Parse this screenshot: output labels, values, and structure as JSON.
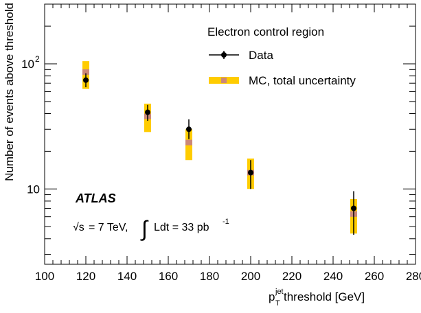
{
  "chart_data": {
    "type": "scatter",
    "ylabel": "Number of events above threshold",
    "xlabel_parts": {
      "p": "p",
      "sup": "jet",
      "sub": "T",
      "rest": " threshold [GeV]"
    },
    "xlim": [
      100,
      280
    ],
    "ylim": [
      2.5,
      300
    ],
    "yscale": "log",
    "xticks": [
      100,
      120,
      140,
      160,
      180,
      200,
      220,
      240,
      260,
      280
    ],
    "yticks": [
      {
        "value": 10,
        "label": "10"
      },
      {
        "value": 100,
        "label": "10",
        "sup": "2"
      }
    ],
    "legend": {
      "title": "Electron control region",
      "entries": [
        {
          "label": "Data",
          "style": "data"
        },
        {
          "label": "MC, total uncertainty",
          "style": "mc"
        }
      ],
      "placement": "top-right"
    },
    "annotations": {
      "atlas": "ATLAS",
      "sqrt": "√s",
      "energy": " = 7 TeV,",
      "integral": "∫",
      "lumi": "Ldt = 33 pb",
      "lumi_sup": "-1"
    },
    "series": [
      {
        "name": "Data",
        "x": [
          120,
          150,
          170,
          200,
          250
        ],
        "y": [
          74,
          41,
          30,
          13.5,
          7
        ],
        "yerr_low": [
          65,
          35,
          25,
          10,
          4.3
        ],
        "yerr_high": [
          84,
          47,
          36,
          17,
          9.6
        ]
      },
      {
        "name": "MC, total uncertainty",
        "x": [
          120,
          150,
          170,
          200,
          250
        ],
        "y": [
          86,
          38,
          23.5,
          13.5,
          6.3
        ],
        "band_low": [
          63,
          28.5,
          17,
          10,
          4.4
        ],
        "band_high": [
          105,
          48,
          30,
          17.5,
          8.3
        ]
      }
    ],
    "colors": {
      "band": "#ffcc00",
      "mc_marker": "#cc8877",
      "data": "#000000"
    }
  }
}
